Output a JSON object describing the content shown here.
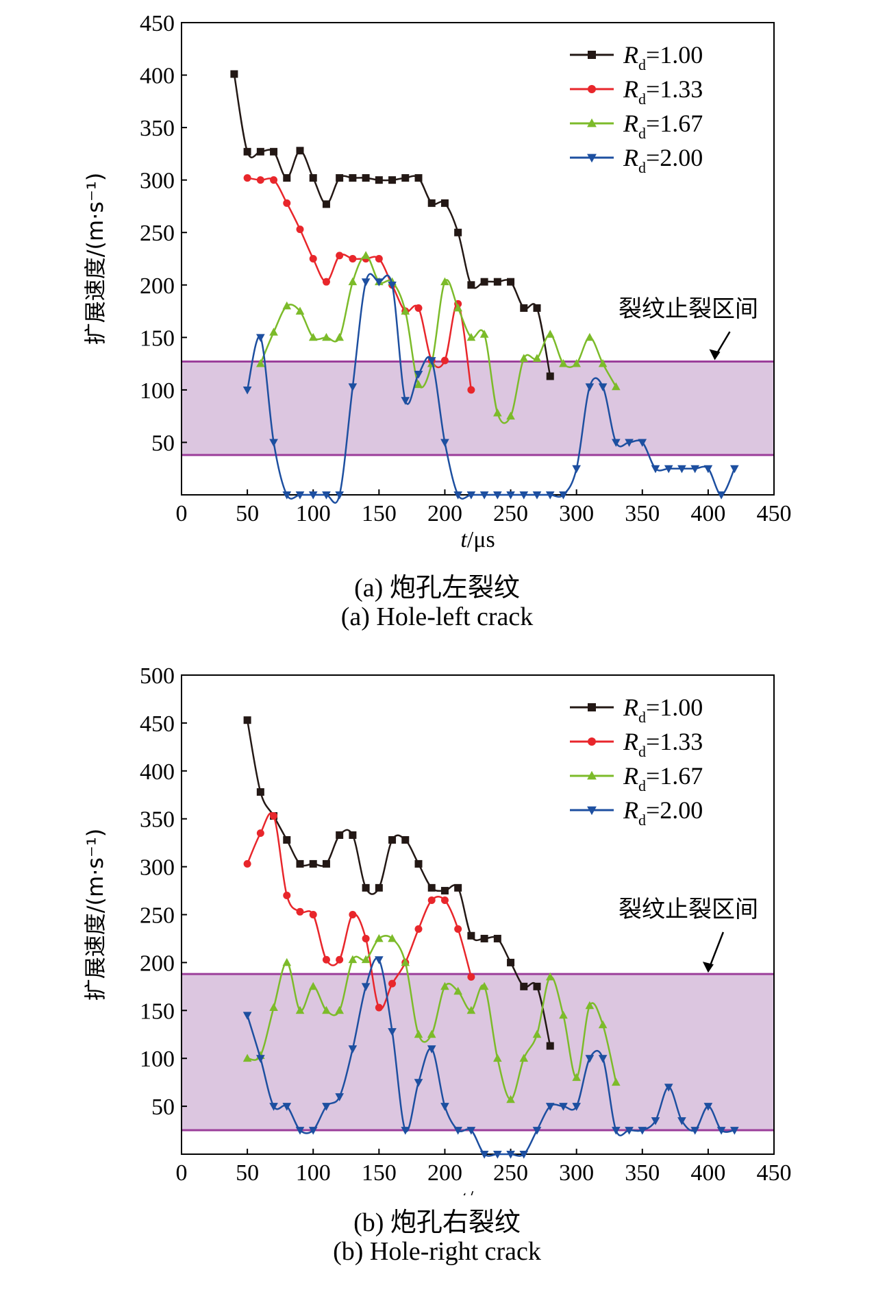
{
  "figures": [
    {
      "caption_cn": "(a) 炮孔左裂纹",
      "caption_en": "(a) Hole-left crack",
      "chart_data": {
        "type": "line",
        "xlabel_var": "t",
        "xlabel_unit": "/μs",
        "ylabel": "扩展速度/(m·s⁻¹)",
        "xlim": [
          0,
          450
        ],
        "ylim": [
          0,
          450
        ],
        "xticks": [
          0,
          50,
          100,
          150,
          200,
          250,
          300,
          350,
          400,
          450
        ],
        "yticks": [
          50,
          100,
          150,
          200,
          250,
          300,
          350,
          400,
          450
        ],
        "band": [
          38,
          127
        ],
        "band_color": "#dcc6e0",
        "band_line_color": "#9b3e9a",
        "annotation": "裂纹止裂区间",
        "annotation_arrow_x": 405,
        "legend_position": "top-right",
        "series": [
          {
            "name": "R",
            "sub": "d",
            "value": "=1.00",
            "color": "#231815",
            "marker": "square",
            "x": [
              40,
              50,
              60,
              70,
              80,
              90,
              100,
              110,
              120,
              130,
              140,
              150,
              160,
              170,
              180,
              190,
              200,
              210,
              220,
              230,
              240,
              250,
              260,
              270,
              280
            ],
            "y": [
              401,
              327,
              327,
              327,
              302,
              328,
              302,
              277,
              302,
              302,
              302,
              300,
              300,
              302,
              302,
              278,
              278,
              250,
              200,
              203,
              203,
              203,
              178,
              178,
              113
            ]
          },
          {
            "name": "R",
            "sub": "d",
            "value": "=1.33",
            "color": "#e8262b",
            "marker": "circle",
            "x": [
              50,
              60,
              70,
              80,
              90,
              100,
              110,
              120,
              130,
              140,
              150,
              160,
              170,
              180,
              190,
              200,
              210,
              220
            ],
            "y": [
              302,
              300,
              300,
              278,
              253,
              225,
              203,
              228,
              225,
              225,
              225,
              200,
              175,
              178,
              128,
              128,
              182,
              100
            ]
          },
          {
            "name": "R",
            "sub": "d",
            "value": "=1.67",
            "color": "#7cbb2a",
            "marker": "triangle-up",
            "x": [
              60,
              70,
              80,
              90,
              100,
              110,
              120,
              130,
              140,
              150,
              160,
              170,
              180,
              190,
              200,
              210,
              220,
              230,
              240,
              250,
              260,
              270,
              280,
              290,
              300,
              310,
              320,
              330
            ],
            "y": [
              125,
              155,
              180,
              175,
              150,
              150,
              150,
              203,
              228,
              203,
              203,
              175,
              105,
              125,
              203,
              178,
              150,
              153,
              78,
              75,
              130,
              130,
              153,
              125,
              125,
              150,
              125,
              103
            ]
          },
          {
            "name": "R",
            "sub": "d",
            "value": "=2.00",
            "color": "#1d4fa0",
            "marker": "triangle-down",
            "x": [
              50,
              60,
              70,
              80,
              90,
              100,
              110,
              120,
              130,
              140,
              150,
              160,
              170,
              180,
              190,
              200,
              210,
              220,
              230,
              240,
              250,
              260,
              270,
              280,
              290,
              300,
              310,
              320,
              330,
              340,
              350,
              360,
              370,
              380,
              390,
              400,
              410,
              420
            ],
            "y": [
              100,
              150,
              50,
              0,
              0,
              0,
              0,
              0,
              103,
              203,
              203,
              200,
              90,
              115,
              128,
              50,
              0,
              0,
              0,
              0,
              0,
              0,
              0,
              0,
              0,
              25,
              103,
              103,
              50,
              50,
              50,
              25,
              25,
              25,
              25,
              25,
              0,
              25
            ]
          }
        ]
      }
    },
    {
      "caption_cn": "(b) 炮孔右裂纹",
      "caption_en": "(b) Hole-right crack",
      "chart_data": {
        "type": "line",
        "xlabel_var": "t",
        "xlabel_unit": "/μs",
        "ylabel": "扩展速度/(m·s⁻¹)",
        "xlim": [
          0,
          450
        ],
        "ylim": [
          0,
          500
        ],
        "xticks": [
          0,
          50,
          100,
          150,
          200,
          250,
          300,
          350,
          400,
          450
        ],
        "yticks": [
          50,
          100,
          150,
          200,
          250,
          300,
          350,
          400,
          450,
          500
        ],
        "band": [
          25,
          188
        ],
        "band_color": "#dcc6e0",
        "band_line_color": "#9b3e9a",
        "annotation": "裂纹止裂区间",
        "annotation_arrow_x": 400,
        "legend_position": "top-right",
        "series": [
          {
            "name": "R",
            "sub": "d",
            "value": "=1.00",
            "color": "#231815",
            "marker": "square",
            "x": [
              50,
              60,
              70,
              80,
              90,
              100,
              110,
              120,
              130,
              140,
              150,
              160,
              170,
              180,
              190,
              200,
              210,
              220,
              230,
              240,
              250,
              260,
              270,
              280
            ],
            "y": [
              453,
              378,
              353,
              328,
              303,
              303,
              303,
              333,
              333,
              278,
              278,
              328,
              328,
              303,
              278,
              275,
              278,
              228,
              225,
              225,
              200,
              175,
              175,
              113
            ]
          },
          {
            "name": "R",
            "sub": "d",
            "value": "=1.33",
            "color": "#e8262b",
            "marker": "circle",
            "x": [
              50,
              60,
              70,
              80,
              90,
              100,
              110,
              120,
              130,
              140,
              150,
              160,
              170,
              180,
              190,
              200,
              210,
              220
            ],
            "y": [
              303,
              335,
              353,
              270,
              253,
              250,
              203,
              203,
              250,
              225,
              153,
              178,
              200,
              235,
              265,
              265,
              235,
              185
            ]
          },
          {
            "name": "R",
            "sub": "d",
            "value": "=1.67",
            "color": "#7cbb2a",
            "marker": "triangle-up",
            "x": [
              50,
              60,
              70,
              80,
              90,
              100,
              110,
              120,
              130,
              140,
              150,
              160,
              170,
              180,
              190,
              200,
              210,
              220,
              230,
              240,
              250,
              260,
              270,
              280,
              290,
              300,
              310,
              320,
              330
            ],
            "y": [
              100,
              103,
              153,
              200,
              150,
              175,
              150,
              150,
              203,
              203,
              225,
              225,
              200,
              125,
              125,
              175,
              170,
              150,
              175,
              100,
              57,
              100,
              125,
              185,
              145,
              80,
              155,
              135,
              75
            ]
          },
          {
            "name": "R",
            "sub": "d",
            "value": "=2.00",
            "color": "#1d4fa0",
            "marker": "triangle-down",
            "x": [
              50,
              60,
              70,
              80,
              90,
              100,
              110,
              120,
              130,
              140,
              150,
              160,
              170,
              180,
              190,
              200,
              210,
              220,
              230,
              240,
              250,
              260,
              270,
              280,
              290,
              300,
              310,
              320,
              330,
              340,
              350,
              360,
              370,
              380,
              390,
              400,
              410,
              420
            ],
            "y": [
              145,
              100,
              50,
              50,
              25,
              25,
              50,
              60,
              110,
              175,
              203,
              128,
              25,
              75,
              110,
              50,
              25,
              25,
              0,
              0,
              0,
              0,
              25,
              50,
              50,
              50,
              100,
              100,
              25,
              25,
              25,
              35,
              70,
              35,
              25,
              50,
              25,
              25
            ]
          }
        ]
      }
    }
  ]
}
